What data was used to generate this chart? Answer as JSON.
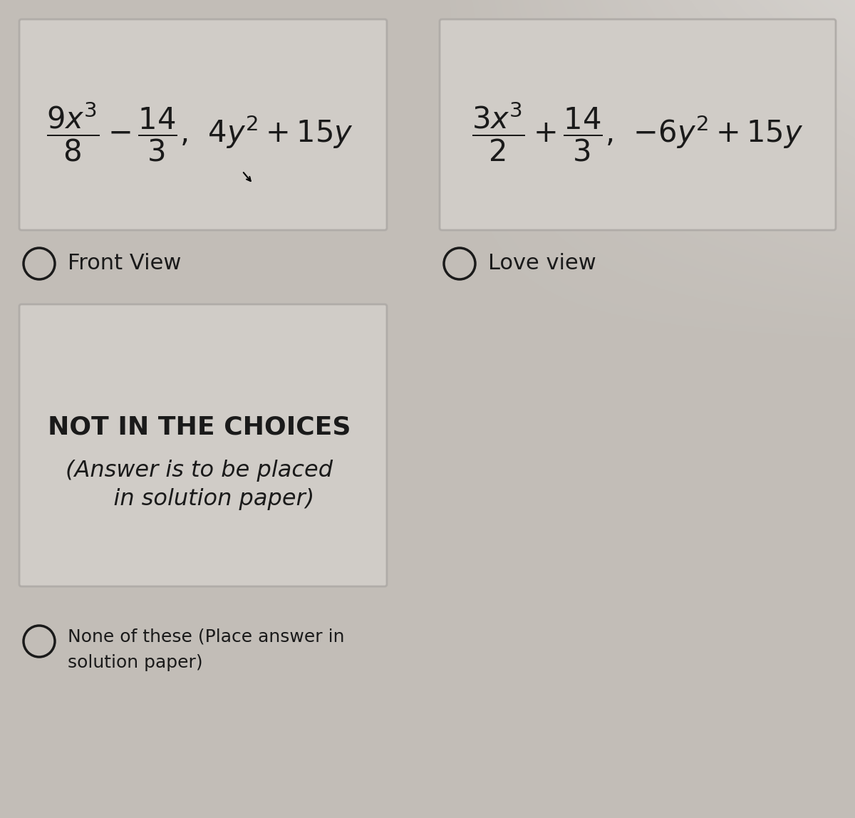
{
  "bg_color": "#c2bdb7",
  "box_color": "#d0ccc7",
  "box_edge_color": "#b0aca8",
  "text_color": "#1a1a1a",
  "label_a": "Front View",
  "label_b": "Love view",
  "choice_c_bold": "NOT IN THE CHOICES",
  "choice_c_italic_line1": "(Answer is to be placed",
  "choice_c_italic_line2": "    in solution paper)",
  "choice_d_text_line1": "None of these (Place answer in",
  "choice_d_text_line2": "solution paper)"
}
